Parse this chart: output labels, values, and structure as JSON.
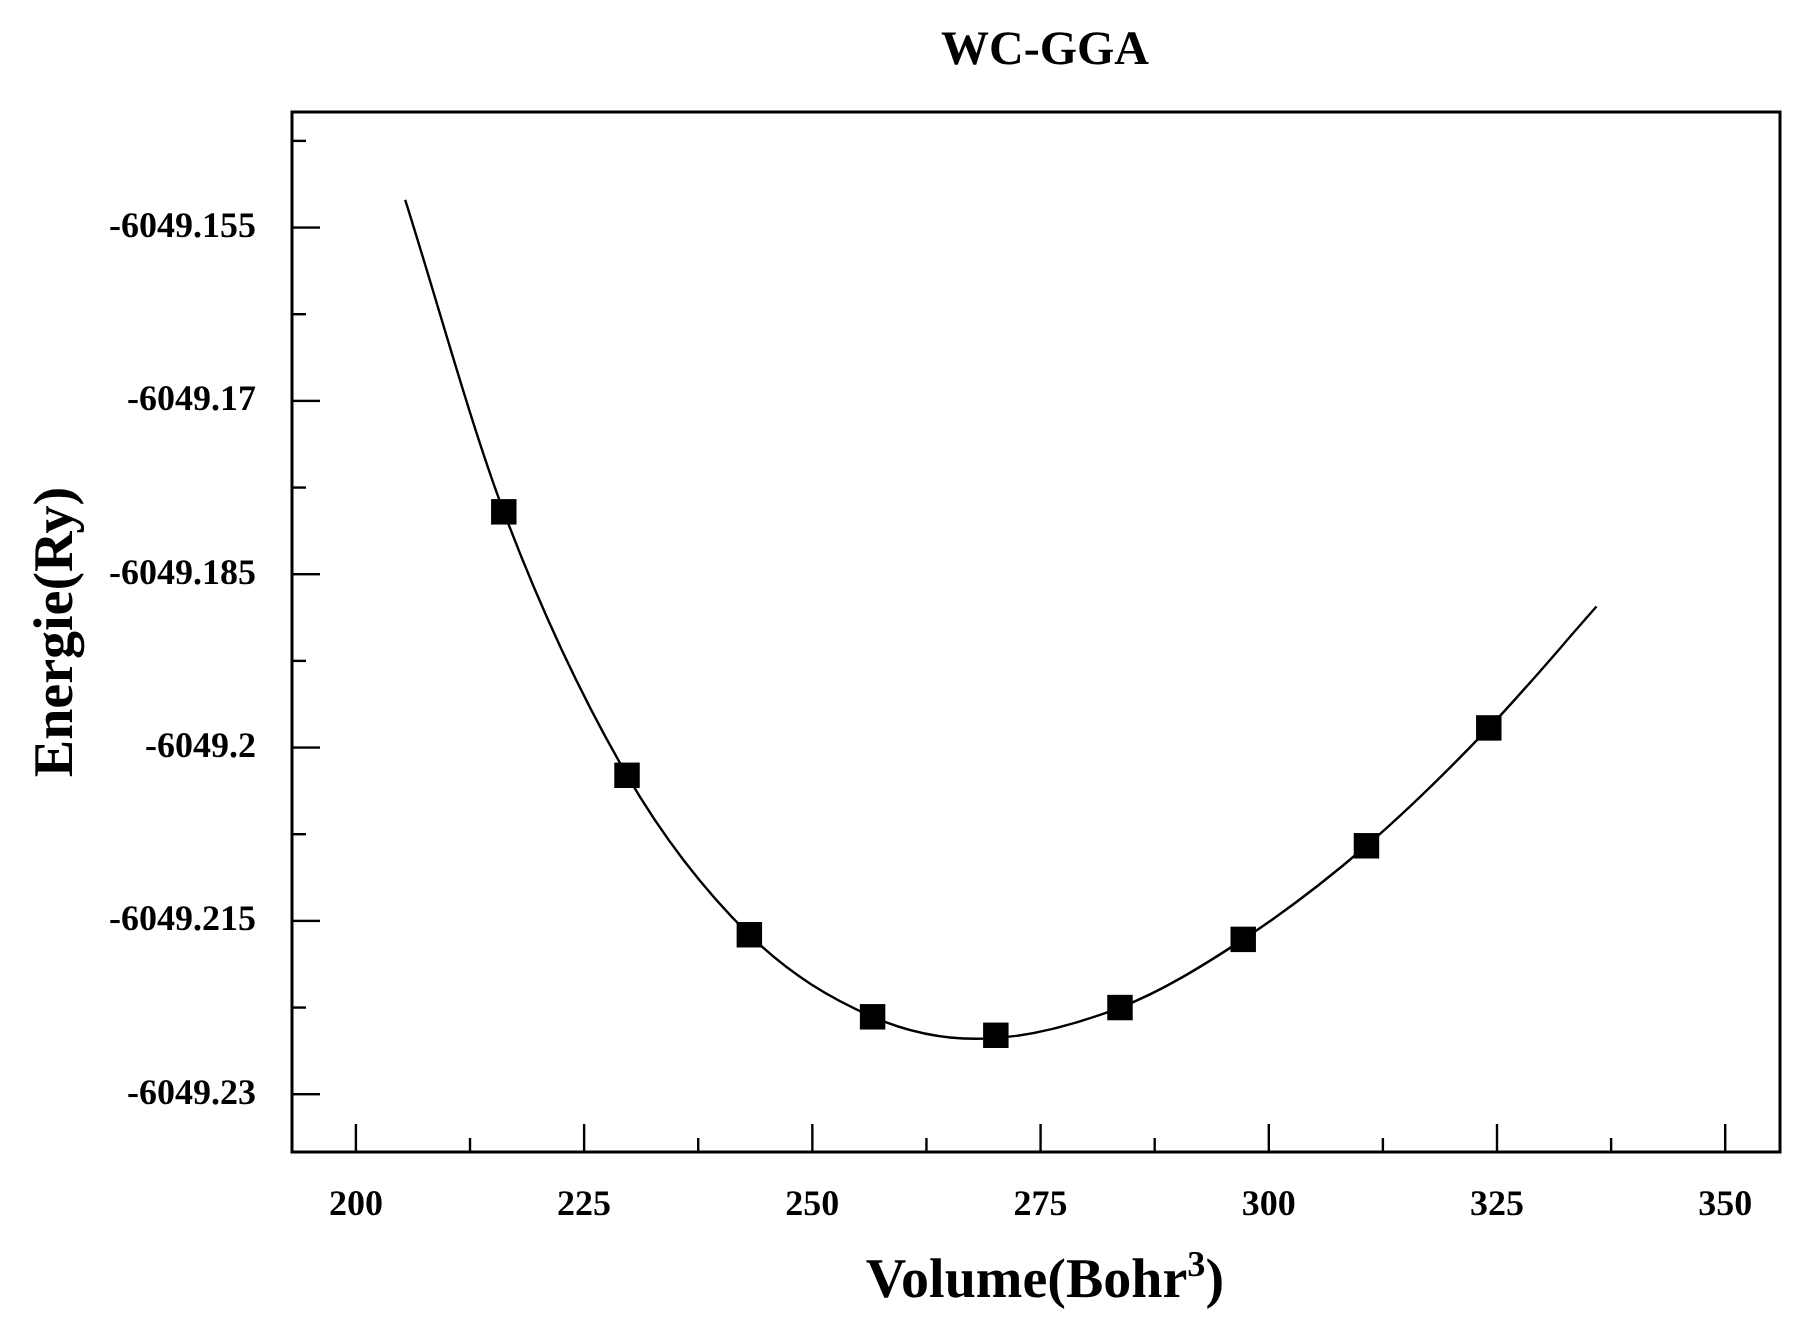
{
  "chart_data": {
    "type": "scatter",
    "title": "WC-GGA",
    "xlabel": "Volume(Bohr$^{3}$)",
    "ylabel": "Energie(Ry)",
    "xlim": [
      193,
      356
    ],
    "xticks": [
      200,
      {
        "value": 212.5,
        "label": null
      },
      225,
      {
        "value": 237.5,
        "label": null
      },
      250,
      {
        "value": 262.5,
        "label": null
      },
      275,
      {
        "value": 287.5,
        "label": null
      },
      300,
      {
        "value": 312.5,
        "label": null
      },
      325,
      {
        "value": 337.5,
        "label": null
      },
      350
    ],
    "ylim": [
      -6049.235,
      -6049.145
    ],
    "yticks": [
      {
        "value": -6049.1475,
        "label": null
      },
      -6049.155,
      {
        "value": -6049.1625,
        "label": null
      },
      -6049.17,
      {
        "value": -6049.1775,
        "label": null
      },
      -6049.185,
      {
        "value": -6049.1925,
        "label": null
      },
      -6049.2,
      {
        "value": -6049.2075,
        "label": null
      },
      -6049.215,
      {
        "value": -6049.2225,
        "label": null
      },
      -6049.23
    ],
    "grid": false,
    "legend": false,
    "series": [
      {
        "type": "line",
        "color": "#000000",
        "marker": "none",
        "line_style": "solid",
        "x": [
          205.4,
          216.2,
          229.7,
          243.1,
          256.6,
          268,
          283.7,
          297.2,
          310.7,
          324.1,
          335.9
        ],
        "values": [
          -6049.1526,
          -6049.1796,
          -6049.2024,
          -6049.2162,
          -6049.2233,
          -6049.2252,
          -6049.2225,
          -6049.2166,
          -6049.2085,
          -6049.1983,
          -6049.1878
        ]
      },
      {
        "type": "scatter",
        "color": "#000000",
        "marker": "square",
        "x": [
          216.2,
          229.7,
          243.1,
          256.6,
          270.1,
          283.7,
          297.2,
          310.7,
          324.1
        ],
        "values": [
          -6049.1796,
          -6049.2024,
          -6049.2162,
          -6049.2233,
          -6049.2249,
          -6049.2225,
          -6049.2166,
          -6049.2085,
          -6049.1983
        ]
      }
    ]
  }
}
